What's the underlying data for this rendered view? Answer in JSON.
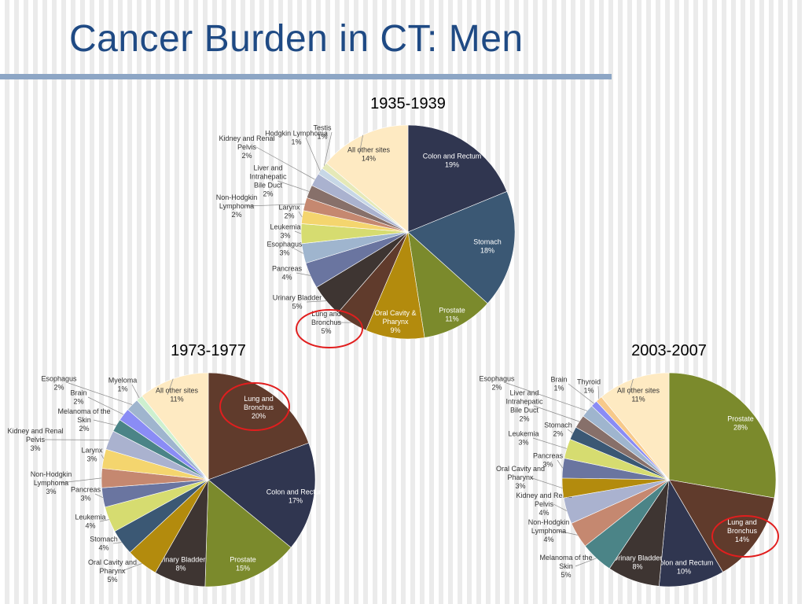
{
  "title": "Cancer Burden in CT: Men",
  "chart_data": [
    {
      "type": "pie",
      "title": "1935-1939",
      "slices": [
        {
          "label": "Colon and Rectum",
          "value": 19,
          "display": "19%",
          "color": "#303650"
        },
        {
          "label": "Stomach",
          "value": 18,
          "display": "18%",
          "color": "#3b5874"
        },
        {
          "label": "Prostate",
          "value": 11,
          "display": "11%",
          "color": "#7b8a2c"
        },
        {
          "label": "Oral Cavity & Pharynx",
          "value": 9,
          "display": "9%",
          "color": "#b38b0d"
        },
        {
          "label": "Lung and Bronchus",
          "value": 5,
          "display": "5%",
          "color": "#603b2c",
          "highlight": true
        },
        {
          "label": "Urinary Bladder",
          "value": 5,
          "display": "5%",
          "color": "#3e3532"
        },
        {
          "label": "Pancreas",
          "value": 4,
          "display": "4%",
          "color": "#6a75a0"
        },
        {
          "label": "Esophagus",
          "value": 3,
          "display": "3%",
          "color": "#9fb5ce"
        },
        {
          "label": "Leukemia",
          "value": 3,
          "display": "3%",
          "color": "#d6dc70"
        },
        {
          "label": "Larynx",
          "value": 2,
          "display": "2%",
          "color": "#f4d56e"
        },
        {
          "label": "Non-Hodgkin Lymphoma",
          "value": 2,
          "display": "2%",
          "color": "#c58870"
        },
        {
          "label": "Liver and Intrahepatic Bile Duct",
          "value": 2,
          "display": "2%",
          "color": "#87706a"
        },
        {
          "label": "Kidney and Renal Pelvis",
          "value": 2,
          "display": "2%",
          "color": "#aab2cf"
        },
        {
          "label": "Hodgkin Lymphoma",
          "value": 1,
          "display": "1%",
          "color": "#c7d7e6"
        },
        {
          "label": "Testis",
          "value": 1,
          "display": "1%",
          "color": "#e5e9b8"
        },
        {
          "label": "All other sites",
          "value": 14,
          "display": "14%",
          "color": "#feeac2"
        }
      ]
    },
    {
      "type": "pie",
      "title": "1973-1977",
      "slices": [
        {
          "label": "Lung and Bronchus",
          "value": 20,
          "display": "20%",
          "color": "#603b2c",
          "highlight": true
        },
        {
          "label": "Colon and Rectum",
          "value": 17,
          "display": "17%",
          "color": "#303650"
        },
        {
          "label": "Prostate",
          "value": 15,
          "display": "15%",
          "color": "#7b8a2c"
        },
        {
          "label": "Urinary Bladder",
          "value": 8,
          "display": "8%",
          "color": "#3e3532"
        },
        {
          "label": "Oral Cavity and Pharynx",
          "value": 5,
          "display": "5%",
          "color": "#b38b0d"
        },
        {
          "label": "Stomach",
          "value": 4,
          "display": "4%",
          "color": "#3b5874"
        },
        {
          "label": "Leukemia",
          "value": 4,
          "display": "4%",
          "color": "#d6dc70"
        },
        {
          "label": "Pancreas",
          "value": 3,
          "display": "3%",
          "color": "#6a75a0"
        },
        {
          "label": "Non-Hodgkin Lymphoma",
          "value": 3,
          "display": "3%",
          "color": "#c58870"
        },
        {
          "label": "Larynx",
          "value": 3,
          "display": "3%",
          "color": "#f4d56e"
        },
        {
          "label": "Kidney and Renal Pelvis",
          "value": 3,
          "display": "3%",
          "color": "#aab2cf"
        },
        {
          "label": "Melanoma of the Skin",
          "value": 2,
          "display": "2%",
          "color": "#4b8487"
        },
        {
          "label": "Brain",
          "value": 2,
          "display": "2%",
          "color": "#8a8cf5"
        },
        {
          "label": "Esophagus",
          "value": 2,
          "display": "2%",
          "color": "#9fb5ce"
        },
        {
          "label": "Myeloma",
          "value": 1,
          "display": "1%",
          "color": "#cdf0cf"
        },
        {
          "label": "All other sites",
          "value": 11,
          "display": "11%",
          "color": "#feeac2"
        }
      ]
    },
    {
      "type": "pie",
      "title": "2003-2007",
      "slices": [
        {
          "label": "Prostate",
          "value": 28,
          "display": "28%",
          "color": "#7b8a2c"
        },
        {
          "label": "Lung and Bronchus",
          "value": 14,
          "display": "14%",
          "color": "#603b2c",
          "highlight": true
        },
        {
          "label": "Colon and Rectum",
          "value": 10,
          "display": "10%",
          "color": "#303650"
        },
        {
          "label": "Urinary Bladder",
          "value": 8,
          "display": "8%",
          "color": "#3e3532"
        },
        {
          "label": "Melanoma of the Skin",
          "value": 5,
          "display": "5%",
          "color": "#4b8487"
        },
        {
          "label": "Non-Hodgkin Lymphoma",
          "value": 4,
          "display": "4%",
          "color": "#c58870"
        },
        {
          "label": "Kidney and Renal Pelvis",
          "value": 4,
          "display": "4%",
          "color": "#aab2cf"
        },
        {
          "label": "Oral Cavity and Pharynx",
          "value": 3,
          "display": "3%",
          "color": "#b38b0d"
        },
        {
          "label": "Pancreas",
          "value": 3,
          "display": "3%",
          "color": "#6a75a0"
        },
        {
          "label": "Leukemia",
          "value": 3,
          "display": "3%",
          "color": "#d6dc70"
        },
        {
          "label": "Stomach",
          "value": 2,
          "display": "2%",
          "color": "#3b5874"
        },
        {
          "label": "Liver and Intrahepatic Bile Duct",
          "value": 2,
          "display": "2%",
          "color": "#87706a"
        },
        {
          "label": "Esophagus",
          "value": 2,
          "display": "2%",
          "color": "#9fb5ce"
        },
        {
          "label": "Brain",
          "value": 1,
          "display": "1%",
          "color": "#8a8cf5"
        },
        {
          "label": "Thyroid",
          "value": 1,
          "display": "1%",
          "color": "#f7c98a"
        },
        {
          "label": "All other sites",
          "value": 11,
          "display": "11%",
          "color": "#feeac2"
        }
      ]
    }
  ]
}
